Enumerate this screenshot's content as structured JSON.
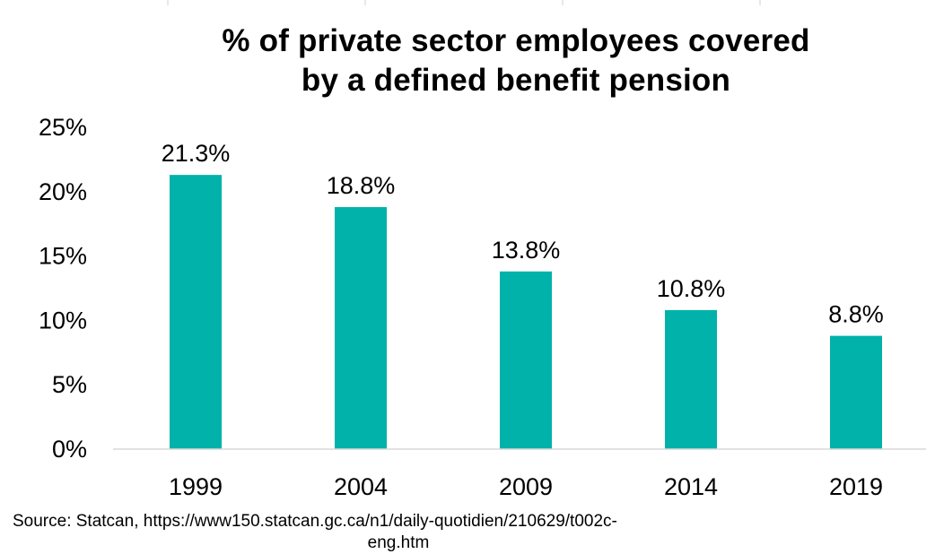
{
  "chart_data": {
    "type": "bar",
    "title_lines": [
      "% of private sector employees covered",
      "by a defined benefit pension"
    ],
    "categories": [
      "1999",
      "2004",
      "2009",
      "2014",
      "2019"
    ],
    "values": [
      21.3,
      18.8,
      13.8,
      10.8,
      8.8
    ],
    "data_labels": [
      "21.3%",
      "18.8%",
      "13.8%",
      "10.8%",
      "8.8%"
    ],
    "y_ticks": [
      "0%",
      "5%",
      "10%",
      "15%",
      "20%",
      "25%"
    ],
    "ylim": [
      0,
      25
    ],
    "grid": false,
    "legend": "none",
    "bar_color": "#00B2A9"
  },
  "source": {
    "line1": "Source: Statcan, https://www150.statcan.gc.ca/n1/daily-quotidien/210629/t002c-",
    "line2": "eng.htm"
  }
}
